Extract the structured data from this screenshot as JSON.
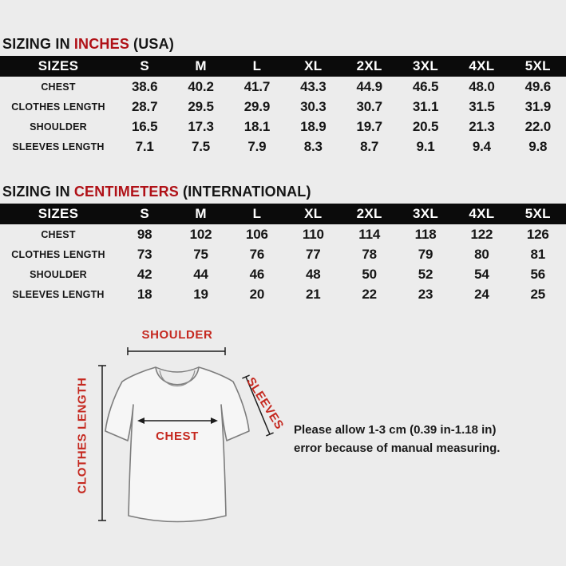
{
  "colors": {
    "page_bg": "#ececec",
    "header_bg": "#0b0b0b",
    "header_text": "#ffffff",
    "text": "#161616",
    "title_red": "#b01117",
    "diagram_red": "#c5281f"
  },
  "tables": [
    {
      "title_prefix": "SIZING IN",
      "title_highlight": "INCHES",
      "title_suffix": "(USA)",
      "header_label": "SIZES",
      "sizes": [
        "S",
        "M",
        "L",
        "XL",
        "2XL",
        "3XL",
        "4XL",
        "5XL"
      ],
      "rows": [
        {
          "label": "CHEST",
          "values": [
            "38.6",
            "40.2",
            "41.7",
            "43.3",
            "44.9",
            "46.5",
            "48.0",
            "49.6"
          ]
        },
        {
          "label": "CLOTHES LENGTH",
          "values": [
            "28.7",
            "29.5",
            "29.9",
            "30.3",
            "30.7",
            "31.1",
            "31.5",
            "31.9"
          ]
        },
        {
          "label": "SHOULDER",
          "values": [
            "16.5",
            "17.3",
            "18.1",
            "18.9",
            "19.7",
            "20.5",
            "21.3",
            "22.0"
          ]
        },
        {
          "label": "SLEEVES LENGTH",
          "values": [
            "7.1",
            "7.5",
            "7.9",
            "8.3",
            "8.7",
            "9.1",
            "9.4",
            "9.8"
          ]
        }
      ]
    },
    {
      "title_prefix": "SIZING IN",
      "title_highlight": "CENTIMETERS",
      "title_suffix": "(INTERNATIONAL)",
      "header_label": "SIZES",
      "sizes": [
        "S",
        "M",
        "L",
        "XL",
        "2XL",
        "3XL",
        "4XL",
        "5XL"
      ],
      "rows": [
        {
          "label": "CHEST",
          "values": [
            "98",
            "102",
            "106",
            "110",
            "114",
            "118",
            "122",
            "126"
          ]
        },
        {
          "label": "CLOTHES LENGTH",
          "values": [
            "73",
            "75",
            "76",
            "77",
            "78",
            "79",
            "80",
            "81"
          ]
        },
        {
          "label": "SHOULDER",
          "values": [
            "42",
            "44",
            "46",
            "48",
            "50",
            "52",
            "54",
            "56"
          ]
        },
        {
          "label": "SLEEVES LENGTH",
          "values": [
            "18",
            "19",
            "20",
            "21",
            "22",
            "23",
            "24",
            "25"
          ]
        }
      ]
    }
  ],
  "diagram": {
    "shoulder_label": "SHOULDER",
    "clothes_length_label": "CLOTHES LENGTH",
    "sleeves_label": "SLEEVES",
    "chest_label": "CHEST"
  },
  "note": {
    "line1": "Please allow 1-3 cm (0.39 in-1.18 in)",
    "line2": "error because of manual measuring."
  }
}
